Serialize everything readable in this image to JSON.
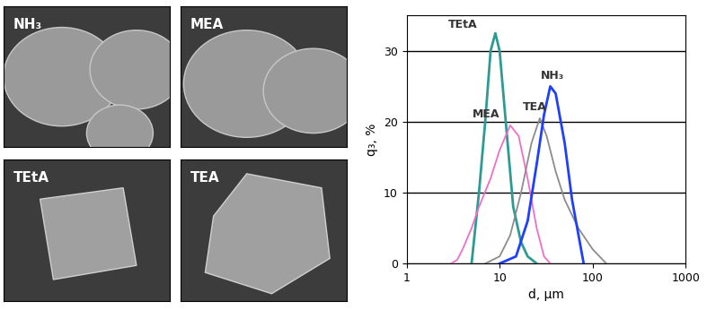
{
  "panels": {
    "labels": [
      "NH₃",
      "MEA",
      "TEtA",
      "TEA"
    ]
  },
  "chart_data": {
    "type": "line",
    "x_label": "d, µm",
    "y_label": "q₃, %",
    "log": "x",
    "grid": true,
    "xlim": [
      1,
      1000
    ],
    "xticks": [
      1,
      10,
      100,
      1000
    ],
    "ylim": [
      0,
      35
    ],
    "yticks": [
      0,
      10,
      20,
      30
    ],
    "series": [
      {
        "name": "TEtA",
        "color": "#2e9a94",
        "x": [
          5,
          6,
          7,
          8,
          9,
          10,
          12,
          14,
          17,
          20,
          25
        ],
        "values": [
          0,
          10,
          20,
          30,
          32.5,
          30,
          18,
          8,
          3,
          1,
          0
        ]
      },
      {
        "name": "MEA",
        "color": "#f06ec8",
        "x": [
          3,
          3.5,
          4,
          5,
          6,
          8,
          10,
          13,
          16,
          20,
          25,
          30,
          35
        ],
        "values": [
          0,
          0.5,
          2,
          5,
          8,
          12,
          16,
          19.5,
          18,
          12,
          5,
          1,
          0
        ]
      },
      {
        "name": "TEA",
        "color": "#8c8c8c",
        "x": [
          7,
          10,
          13,
          17,
          22,
          27,
          32,
          40,
          50,
          70,
          100,
          140
        ],
        "values": [
          0,
          1,
          4,
          10,
          17,
          20.5,
          18,
          13,
          9,
          5,
          2,
          0
        ]
      },
      {
        "name": "NH₃",
        "color": "#1f3fff",
        "x": [
          10,
          15,
          20,
          25,
          30,
          35,
          40,
          50,
          60,
          75,
          80
        ],
        "values": [
          0,
          1,
          6,
          14,
          21,
          25,
          24,
          17,
          9,
          2,
          0
        ]
      }
    ]
  }
}
